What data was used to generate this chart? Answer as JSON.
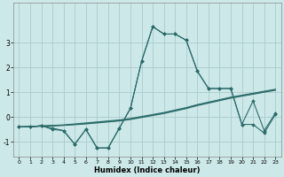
{
  "xlabel": "Humidex (Indice chaleur)",
  "ylabel": "",
  "bg_color": "#cce8e8",
  "grid_color": "#aacccc",
  "line_color": "#2d6b6b",
  "marker": "D",
  "markersize": 1.8,
  "linewidth": 0.8,
  "xlim": [
    -0.5,
    23.5
  ],
  "ylim": [
    -1.6,
    4.6
  ],
  "yticks": [
    -1,
    0,
    1,
    2,
    3
  ],
  "xticks": [
    0,
    1,
    2,
    3,
    4,
    5,
    6,
    7,
    8,
    9,
    10,
    11,
    12,
    13,
    14,
    15,
    16,
    17,
    18,
    19,
    20,
    21,
    22,
    23
  ],
  "series": [
    {
      "y": [
        -0.4,
        -0.4,
        -0.35,
        -0.45,
        -0.55,
        -1.1,
        -0.5,
        -1.25,
        -1.25,
        -0.45,
        0.35,
        2.25,
        3.65,
        3.35,
        3.35,
        3.1,
        1.85,
        1.15,
        1.15,
        1.15,
        -0.3,
        -0.3,
        -0.65,
        0.1
      ],
      "marker": true
    },
    {
      "y": [
        -0.4,
        -0.4,
        -0.35,
        -0.5,
        -0.55,
        -1.1,
        -0.5,
        -1.25,
        -1.25,
        -0.45,
        0.35,
        2.25,
        3.65,
        3.35,
        3.35,
        3.1,
        1.85,
        1.15,
        1.15,
        1.15,
        -0.3,
        0.65,
        -0.55,
        0.15
      ],
      "marker": true
    },
    {
      "y": [
        -0.4,
        -0.38,
        -0.36,
        -0.34,
        -0.32,
        -0.28,
        -0.24,
        -0.2,
        -0.16,
        -0.12,
        -0.06,
        0.02,
        0.1,
        0.18,
        0.28,
        0.38,
        0.5,
        0.6,
        0.7,
        0.8,
        0.88,
        0.96,
        1.04,
        1.12
      ],
      "marker": false
    },
    {
      "y": [
        -0.4,
        -0.39,
        -0.37,
        -0.35,
        -0.33,
        -0.3,
        -0.26,
        -0.22,
        -0.18,
        -0.14,
        -0.08,
        0.0,
        0.08,
        0.16,
        0.26,
        0.36,
        0.48,
        0.58,
        0.68,
        0.78,
        0.86,
        0.94,
        1.02,
        1.1
      ],
      "marker": false
    },
    {
      "y": [
        -0.4,
        -0.39,
        -0.37,
        -0.36,
        -0.34,
        -0.31,
        -0.28,
        -0.24,
        -0.2,
        -0.16,
        -0.1,
        -0.02,
        0.06,
        0.14,
        0.24,
        0.34,
        0.46,
        0.56,
        0.66,
        0.76,
        0.84,
        0.92,
        1.0,
        1.08
      ],
      "marker": false
    }
  ]
}
